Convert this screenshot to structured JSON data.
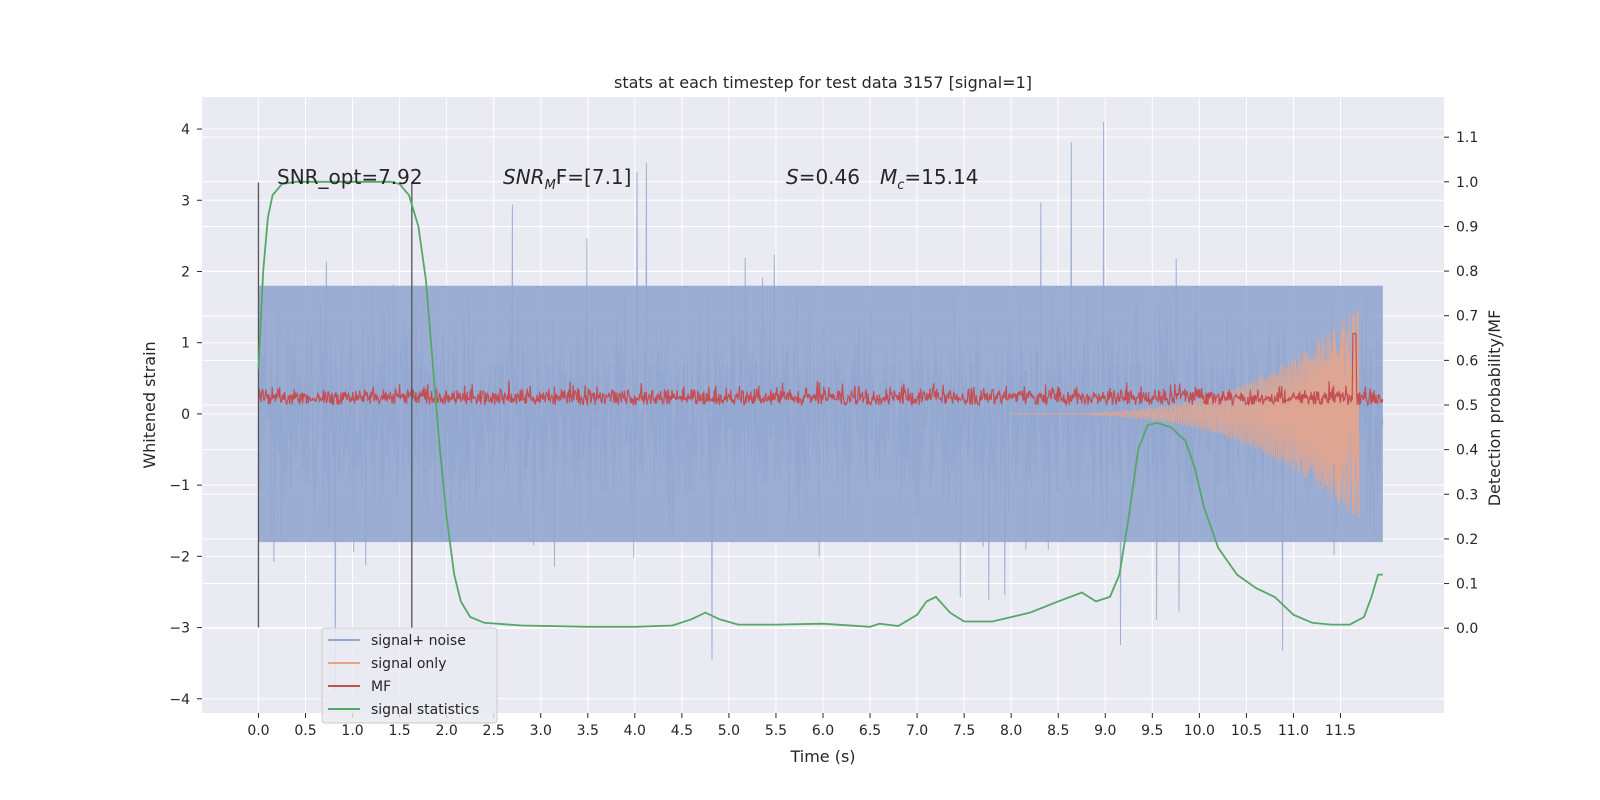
{
  "chart_data": {
    "type": "line",
    "title": "stats at each timestep for test data 3157 [signal=1]",
    "xlabel": "Time (s)",
    "ylabel": "Whitened strain",
    "y2label": "Detection probability/MF",
    "xlim": [
      -0.6,
      12.6
    ],
    "ylim": [
      -4.2,
      4.45
    ],
    "y2lim": [
      -0.19,
      1.19
    ],
    "x_ticks": [
      "0.0",
      "0.5",
      "1.0",
      "1.5",
      "2.0",
      "2.5",
      "3.0",
      "3.5",
      "4.0",
      "4.5",
      "5.0",
      "5.5",
      "6.0",
      "6.5",
      "7.0",
      "7.5",
      "8.0",
      "8.5",
      "9.0",
      "9.5",
      "10.0",
      "10.5",
      "11.0",
      "11.5"
    ],
    "y_ticks": [
      "4",
      "3",
      "2",
      "1",
      "0",
      "−1",
      "−2",
      "−3",
      "−4"
    ],
    "y2_ticks": [
      "1.1",
      "1.0",
      "0.9",
      "0.8",
      "0.7",
      "0.6",
      "0.5",
      "0.4",
      "0.3",
      "0.2",
      "0.1",
      "0.0"
    ],
    "grid": true,
    "legend_position": "lower-left",
    "annotations": {
      "snr_opt": "SNR_opt=7.92",
      "snr_mf_main": "SNR",
      "snr_mf_sub": "M",
      "snr_mf_rest": "F=[7.1]",
      "s_main": "S",
      "s_rest": "=0.46",
      "mc_main": "M",
      "mc_sub": "c",
      "mc_rest": "=15.14"
    },
    "vertical_markers": [
      0.0,
      1.63
    ],
    "series": [
      {
        "name": "signal+ noise",
        "color": "#92a6cf",
        "axis": "left",
        "kind": "noise",
        "x_range": [
          0.0,
          11.95
        ],
        "envelope": [
          -1.8,
          1.8
        ]
      },
      {
        "name": "signal only",
        "color": "#e6a58b",
        "axis": "left",
        "kind": "chirp",
        "x_range": [
          8.0,
          11.7
        ],
        "peak": 1.55
      },
      {
        "name": "MF",
        "color": "#c44e52",
        "axis": "right",
        "kind": "noise",
        "x_range": [
          0.0,
          11.95
        ],
        "baseline": 0.5,
        "spread": [
          0.5,
          0.58
        ],
        "peak": {
          "x": 11.65,
          "y": 0.66
        }
      },
      {
        "name": "signal statistics",
        "color": "#55a868",
        "axis": "right",
        "kind": "line",
        "points": [
          [
            0.0,
            0.58
          ],
          [
            0.05,
            0.8
          ],
          [
            0.1,
            0.92
          ],
          [
            0.15,
            0.97
          ],
          [
            0.25,
            0.995
          ],
          [
            0.4,
            1.0
          ],
          [
            1.0,
            1.0
          ],
          [
            1.4,
            1.0
          ],
          [
            1.5,
            0.995
          ],
          [
            1.6,
            0.97
          ],
          [
            1.7,
            0.9
          ],
          [
            1.78,
            0.78
          ],
          [
            1.85,
            0.6
          ],
          [
            1.92,
            0.42
          ],
          [
            2.0,
            0.25
          ],
          [
            2.08,
            0.12
          ],
          [
            2.15,
            0.06
          ],
          [
            2.25,
            0.025
          ],
          [
            2.4,
            0.012
          ],
          [
            2.8,
            0.006
          ],
          [
            3.5,
            0.003
          ],
          [
            4.0,
            0.003
          ],
          [
            4.4,
            0.006
          ],
          [
            4.6,
            0.02
          ],
          [
            4.75,
            0.035
          ],
          [
            4.9,
            0.02
          ],
          [
            5.1,
            0.008
          ],
          [
            5.5,
            0.008
          ],
          [
            6.0,
            0.01
          ],
          [
            6.5,
            0.003
          ],
          [
            6.6,
            0.01
          ],
          [
            6.8,
            0.005
          ],
          [
            7.0,
            0.03
          ],
          [
            7.1,
            0.06
          ],
          [
            7.2,
            0.07
          ],
          [
            7.35,
            0.035
          ],
          [
            7.5,
            0.015
          ],
          [
            7.8,
            0.015
          ],
          [
            8.2,
            0.035
          ],
          [
            8.5,
            0.06
          ],
          [
            8.75,
            0.08
          ],
          [
            8.9,
            0.06
          ],
          [
            9.05,
            0.07
          ],
          [
            9.15,
            0.12
          ],
          [
            9.25,
            0.25
          ],
          [
            9.35,
            0.4
          ],
          [
            9.45,
            0.455
          ],
          [
            9.55,
            0.46
          ],
          [
            9.7,
            0.45
          ],
          [
            9.85,
            0.42
          ],
          [
            9.95,
            0.36
          ],
          [
            10.05,
            0.27
          ],
          [
            10.2,
            0.18
          ],
          [
            10.4,
            0.12
          ],
          [
            10.6,
            0.09
          ],
          [
            10.8,
            0.07
          ],
          [
            11.0,
            0.03
          ],
          [
            11.2,
            0.012
          ],
          [
            11.4,
            0.008
          ],
          [
            11.6,
            0.008
          ],
          [
            11.75,
            0.025
          ],
          [
            11.83,
            0.07
          ],
          [
            11.9,
            0.12
          ],
          [
            11.95,
            0.12
          ]
        ]
      }
    ]
  }
}
